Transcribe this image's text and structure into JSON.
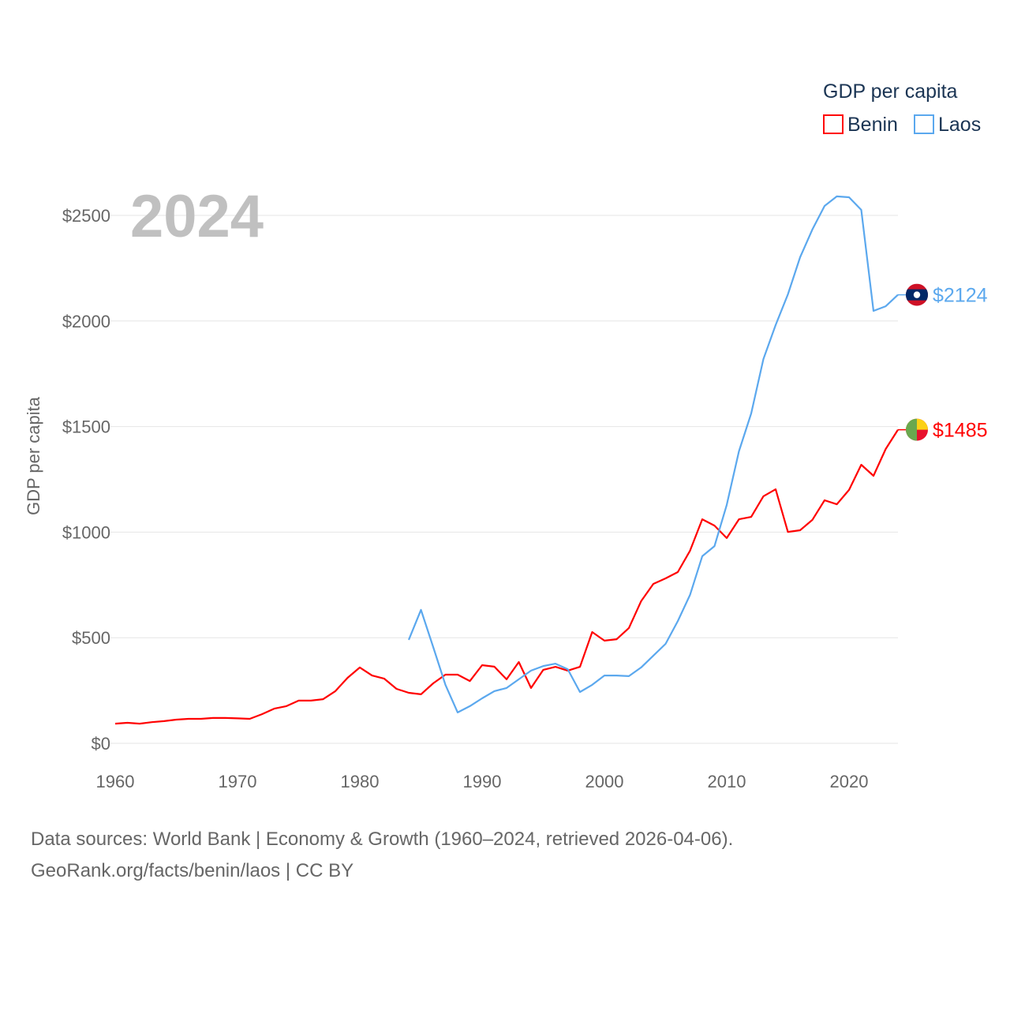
{
  "chart_data": {
    "type": "line",
    "title": "2024",
    "ylabel": "GDP per capita",
    "xlabel": "",
    "xlim": [
      1960,
      2024
    ],
    "ylim": [
      0,
      2600
    ],
    "x_ticks": [
      1960,
      1970,
      1980,
      1990,
      2000,
      2010,
      2020
    ],
    "x_tick_labels": [
      "1960",
      "1970",
      "1980",
      "1990",
      "2000",
      "2010",
      "2020"
    ],
    "y_ticks": [
      0,
      500,
      1000,
      1500,
      2000,
      2500
    ],
    "y_tick_labels": [
      "$0",
      "$500",
      "$1000",
      "$1500",
      "$2000",
      "$2500"
    ],
    "grid": true,
    "legend": {
      "title": "GDP per capita",
      "placement": "top-right"
    },
    "series": [
      {
        "name": "Benin",
        "color": "#ff0000",
        "flag": "benin-flag",
        "end_label": "$1485",
        "start_year": 1960,
        "values": [
          93,
          97,
          93,
          100,
          105,
          112,
          116,
          116,
          120,
          120,
          118,
          116,
          138,
          164,
          176,
          202,
          202,
          209,
          247,
          310,
          359,
          321,
          306,
          258,
          239,
          232,
          284,
          325,
          325,
          295,
          370,
          363,
          303,
          385,
          262,
          348,
          362,
          344,
          362,
          527,
          486,
          493,
          546,
          673,
          755,
          781,
          811,
          912,
          1061,
          1031,
          972,
          1061,
          1072,
          1170,
          1203,
          1001,
          1009,
          1058,
          1151,
          1132,
          1200,
          1319,
          1267,
          1394,
          1485
        ]
      },
      {
        "name": "Laos",
        "color": "#5ba8ee",
        "flag": "laos-flag",
        "end_label": "$2124",
        "start_year": 1984,
        "values": [
          490,
          632,
          456,
          277,
          146,
          176,
          213,
          247,
          262,
          303,
          344,
          366,
          377,
          351,
          243,
          277,
          321,
          321,
          318,
          359,
          415,
          471,
          579,
          703,
          886,
          934,
          1129,
          1383,
          1562,
          1820,
          1981,
          2126,
          2302,
          2433,
          2545,
          2590,
          2586,
          2526,
          2048,
          2070,
          2124
        ]
      }
    ]
  },
  "footer": {
    "line1": "Data sources: World Bank | Economy & Growth (1960–2024, retrieved 2026-04-06).",
    "line2": "GeoRank.org/facts/benin/laos | CC BY"
  }
}
